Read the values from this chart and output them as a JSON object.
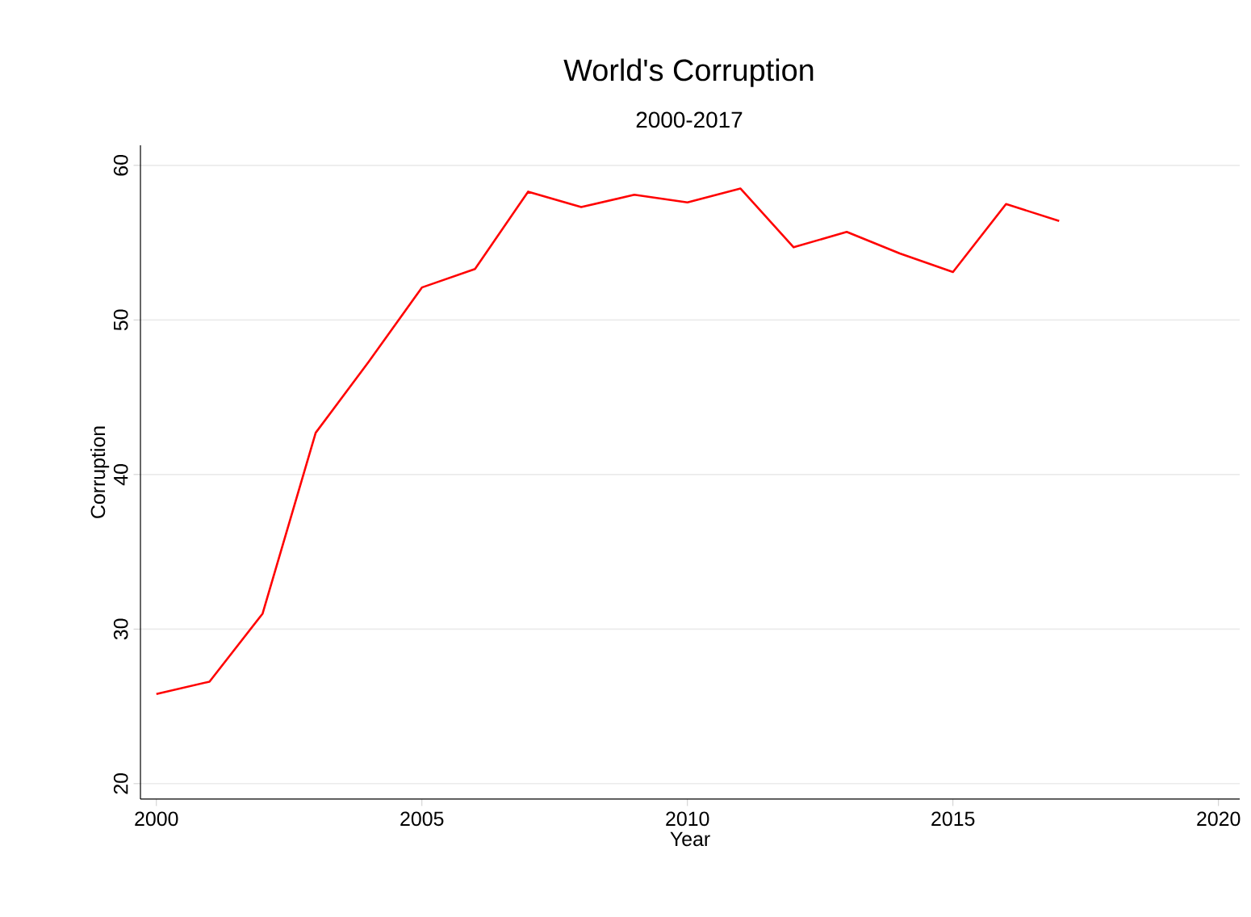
{
  "chart_data": {
    "type": "line",
    "title": "World's Corruption",
    "subtitle": "2000-2017",
    "xlabel": "Year",
    "ylabel": "Corruption",
    "x": [
      2000,
      2001,
      2002,
      2003,
      2004,
      2005,
      2006,
      2007,
      2008,
      2009,
      2010,
      2011,
      2012,
      2013,
      2014,
      2015,
      2016,
      2017
    ],
    "series": [
      {
        "color": "#ff0000",
        "values": [
          25.8,
          26.6,
          31.0,
          42.7,
          47.3,
          52.1,
          53.3,
          58.3,
          57.3,
          58.1,
          57.6,
          58.5,
          54.7,
          55.7,
          54.3,
          53.1,
          57.5,
          56.4
        ]
      }
    ],
    "xlim": [
      1999.7,
      2020.4
    ],
    "ylim": [
      19,
      61.3
    ],
    "xticks": [
      2000,
      2005,
      2010,
      2015,
      2020
    ],
    "yticks": [
      20,
      30,
      40,
      50,
      60
    ],
    "grid": "y",
    "marker": "none",
    "line_style": "solid"
  }
}
